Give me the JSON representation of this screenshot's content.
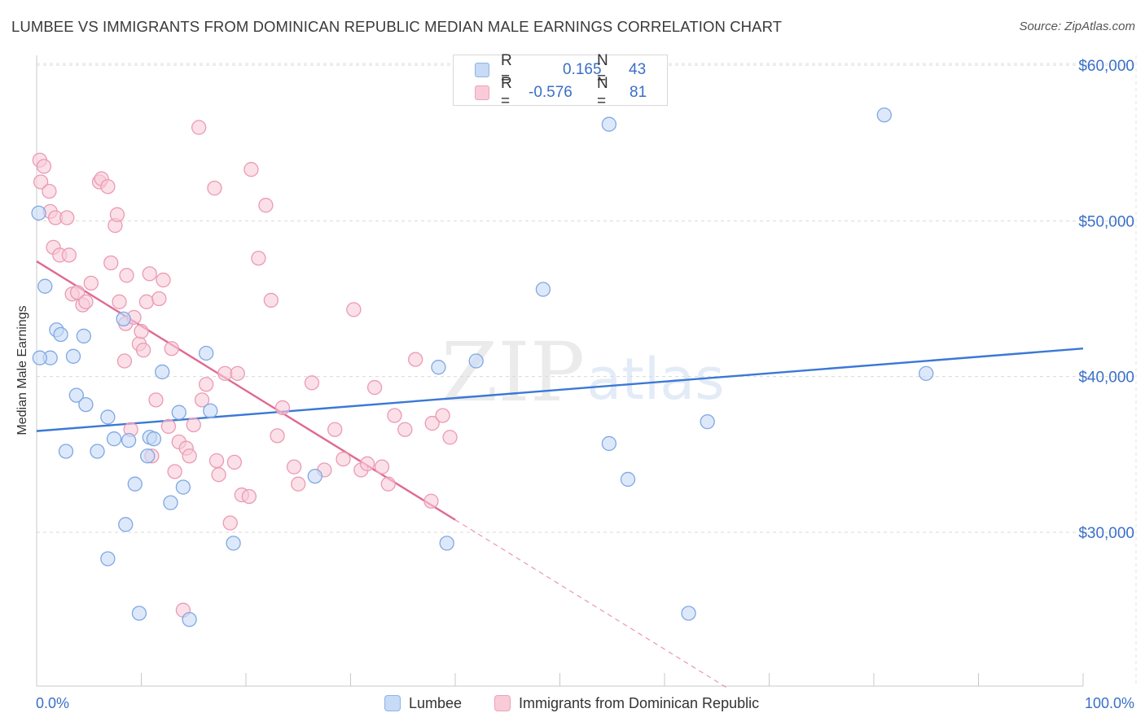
{
  "header": {
    "title": "LUMBEE VS IMMIGRANTS FROM DOMINICAN REPUBLIC MEDIAN MALE EARNINGS CORRELATION CHART",
    "source": "Source: ZipAtlas.com"
  },
  "watermark": {
    "zip": "ZIP",
    "atlas": "atlas"
  },
  "stats_box": {
    "rows": [
      {
        "r_label": "R =",
        "r_value": "0.165",
        "n_label": "N =",
        "n_value": "43",
        "color": "#aec8f0"
      },
      {
        "r_label": "R =",
        "r_value": "-0.576",
        "n_label": "N =",
        "n_value": "81",
        "color": "#f6b8cb"
      }
    ]
  },
  "legend": {
    "items": [
      {
        "label": "Lumbee",
        "color": "#aec8f0"
      },
      {
        "label": "Immigrants from Dominican Republic",
        "color": "#f6b8cb"
      }
    ]
  },
  "chart_data": {
    "type": "scatter",
    "title": "LUMBEE VS IMMIGRANTS FROM DOMINICAN REPUBLIC MEDIAN MALE EARNINGS CORRELATION CHART",
    "xlabel": "",
    "ylabel": "Median Male Earnings",
    "xlim": [
      0,
      100
    ],
    "ylim": [
      20000,
      62000
    ],
    "x_tick_labels": [
      "0.0%",
      "100.0%"
    ],
    "y_ticks": [
      30000,
      40000,
      50000,
      60000
    ],
    "y_tick_labels": [
      "$30,000",
      "$40,000",
      "$50,000",
      "$60,000"
    ],
    "grid": true,
    "legend_position": "bottom",
    "colors": {
      "lumbee": "#3a78d6",
      "dominican": "#e06a93",
      "lumbee_fill": "#c7daf6",
      "dominican_fill": "#f9cbd9"
    },
    "series": [
      {
        "name": "Lumbee",
        "color": "#3a78d6",
        "trend": {
          "x": [
            0,
            100
          ],
          "y": [
            36500,
            41800
          ],
          "style": "solid"
        },
        "points": [
          [
            0.2,
            50500
          ],
          [
            0.8,
            45800
          ],
          [
            1.3,
            41200
          ],
          [
            1.9,
            43000
          ],
          [
            2.3,
            42700
          ],
          [
            2.8,
            35200
          ],
          [
            3.5,
            41300
          ],
          [
            3.8,
            38800
          ],
          [
            4.5,
            42600
          ],
          [
            4.7,
            38200
          ],
          [
            5.8,
            35200
          ],
          [
            6.8,
            28300
          ],
          [
            6.8,
            37400
          ],
          [
            7.4,
            36000
          ],
          [
            8.3,
            43700
          ],
          [
            8.5,
            30500
          ],
          [
            8.8,
            35900
          ],
          [
            9.4,
            33100
          ],
          [
            9.8,
            24800
          ],
          [
            10.6,
            34900
          ],
          [
            10.8,
            36100
          ],
          [
            11.2,
            36000
          ],
          [
            12.0,
            40300
          ],
          [
            12.8,
            31900
          ],
          [
            13.6,
            37700
          ],
          [
            14.0,
            32900
          ],
          [
            14.6,
            24400
          ],
          [
            16.2,
            41500
          ],
          [
            16.6,
            37800
          ],
          [
            18.8,
            29300
          ],
          [
            26.6,
            33600
          ],
          [
            38.4,
            40600
          ],
          [
            39.2,
            29300
          ],
          [
            42.0,
            41000
          ],
          [
            48.4,
            45600
          ],
          [
            54.7,
            56200
          ],
          [
            54.7,
            35700
          ],
          [
            56.5,
            33400
          ],
          [
            62.3,
            24800
          ],
          [
            64.1,
            37100
          ],
          [
            81.0,
            56800
          ],
          [
            85.0,
            40200
          ],
          [
            0.3,
            41200
          ]
        ]
      },
      {
        "name": "Immigrants from Dominican Republic",
        "color": "#e06a93",
        "trend": {
          "x": [
            0,
            40
          ],
          "y": [
            47400,
            30800
          ],
          "style": "solid",
          "extension": {
            "x": [
              40,
              66
            ],
            "y": [
              30800,
              20000
            ],
            "style": "dashed"
          }
        },
        "points": [
          [
            0.3,
            53900
          ],
          [
            0.4,
            52500
          ],
          [
            0.7,
            53500
          ],
          [
            1.2,
            51900
          ],
          [
            1.3,
            50600
          ],
          [
            1.6,
            48300
          ],
          [
            1.8,
            50200
          ],
          [
            2.2,
            47800
          ],
          [
            2.9,
            50200
          ],
          [
            3.1,
            47800
          ],
          [
            3.4,
            45300
          ],
          [
            3.9,
            45400
          ],
          [
            4.4,
            44600
          ],
          [
            4.7,
            44800
          ],
          [
            5.2,
            46000
          ],
          [
            6.0,
            52500
          ],
          [
            6.2,
            52700
          ],
          [
            6.8,
            52200
          ],
          [
            7.1,
            47300
          ],
          [
            7.5,
            49700
          ],
          [
            7.7,
            50400
          ],
          [
            7.9,
            44800
          ],
          [
            8.4,
            41000
          ],
          [
            8.5,
            43400
          ],
          [
            8.6,
            46500
          ],
          [
            9.0,
            36600
          ],
          [
            9.3,
            43800
          ],
          [
            9.8,
            42100
          ],
          [
            10.0,
            42900
          ],
          [
            10.2,
            41700
          ],
          [
            10.5,
            44800
          ],
          [
            10.8,
            46600
          ],
          [
            11.0,
            34900
          ],
          [
            11.4,
            38500
          ],
          [
            11.7,
            45000
          ],
          [
            12.1,
            46200
          ],
          [
            12.6,
            36800
          ],
          [
            12.9,
            41800
          ],
          [
            13.2,
            33900
          ],
          [
            13.6,
            35800
          ],
          [
            14.0,
            25000
          ],
          [
            14.3,
            35400
          ],
          [
            14.6,
            34900
          ],
          [
            15.0,
            36900
          ],
          [
            15.5,
            56000
          ],
          [
            15.8,
            38500
          ],
          [
            16.2,
            39500
          ],
          [
            17.0,
            52100
          ],
          [
            17.4,
            33700
          ],
          [
            18.0,
            40200
          ],
          [
            18.5,
            30600
          ],
          [
            18.9,
            34500
          ],
          [
            19.2,
            40200
          ],
          [
            19.6,
            32400
          ],
          [
            20.3,
            32300
          ],
          [
            20.5,
            53300
          ],
          [
            21.2,
            47600
          ],
          [
            21.9,
            51000
          ],
          [
            22.4,
            44900
          ],
          [
            23.0,
            36200
          ],
          [
            23.5,
            38000
          ],
          [
            24.6,
            34200
          ],
          [
            25.0,
            33100
          ],
          [
            26.3,
            39600
          ],
          [
            27.5,
            34000
          ],
          [
            28.5,
            36600
          ],
          [
            29.3,
            34700
          ],
          [
            30.3,
            44300
          ],
          [
            31.0,
            34000
          ],
          [
            31.6,
            34400
          ],
          [
            32.3,
            39300
          ],
          [
            33.0,
            34200
          ],
          [
            33.6,
            33100
          ],
          [
            34.2,
            37500
          ],
          [
            35.2,
            36600
          ],
          [
            36.2,
            41100
          ],
          [
            37.7,
            32000
          ],
          [
            37.8,
            37000
          ],
          [
            38.8,
            37500
          ],
          [
            39.5,
            36100
          ],
          [
            17.2,
            34600
          ]
        ]
      }
    ]
  }
}
